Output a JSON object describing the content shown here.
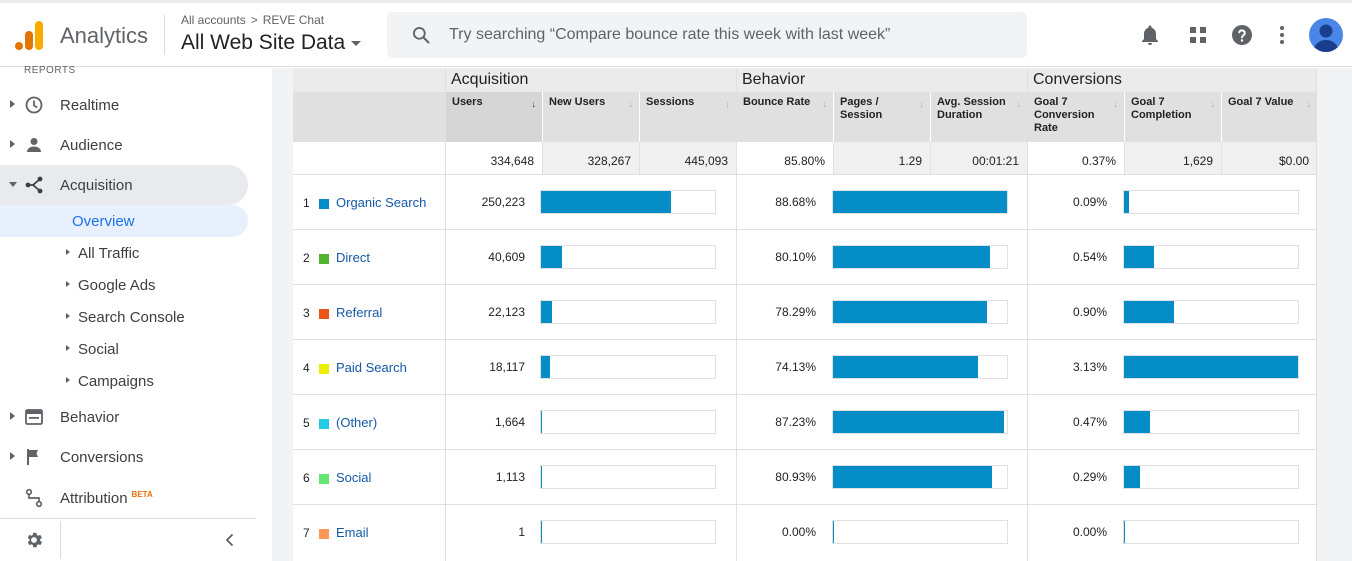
{
  "header": {
    "brand": "Analytics",
    "breadcrumb_root": "All accounts",
    "breadcrumb_sep": ">",
    "breadcrumb_account": "REVE Chat",
    "view_name": "All Web Site Data",
    "search_placeholder": "Try searching “Compare bounce rate this week with last week”"
  },
  "sidebar": {
    "reports_label": "REPORTS",
    "realtime": "Realtime",
    "audience": "Audience",
    "acquisition": "Acquisition",
    "overview": "Overview",
    "all_traffic": "All Traffic",
    "google_ads": "Google Ads",
    "search_console": "Search Console",
    "social": "Social",
    "campaigns": "Campaigns",
    "behavior": "Behavior",
    "conversions": "Conversions",
    "attribution": "Attribution",
    "beta": "BETA"
  },
  "table": {
    "groups": {
      "acquisition": "Acquisition",
      "behavior": "Behavior",
      "conversions": "Conversions"
    },
    "columns": {
      "users": "Users",
      "new_users": "New Users",
      "sessions": "Sessions",
      "bounce_rate": "Bounce Rate",
      "pages_session": "Pages / Session",
      "avg_duration": "Avg. Session Duration",
      "conv_rate": "Goal 7 Conversion Rate",
      "completion": "Goal 7 Completion",
      "goal_value": "Goal 7 Value"
    },
    "totals": {
      "users": "334,648",
      "new_users": "328,267",
      "sessions": "445,093",
      "bounce_rate": "85.80%",
      "pages_session": "1.29",
      "avg_duration": "00:01:21",
      "conv_rate": "0.37%",
      "completion": "1,629",
      "goal_value": "$0.00"
    },
    "rows": [
      {
        "n": "1",
        "channel": "Organic Search",
        "color": "#058dc7",
        "users": "250,223",
        "users_pct": 0.748,
        "bounce": "88.68%",
        "bounce_pct": 1.0,
        "conv": "0.09%",
        "conv_pct": 0.029
      },
      {
        "n": "2",
        "channel": "Direct",
        "color": "#50b432",
        "users": "40,609",
        "users_pct": 0.121,
        "bounce": "80.10%",
        "bounce_pct": 0.903,
        "conv": "0.54%",
        "conv_pct": 0.173
      },
      {
        "n": "3",
        "channel": "Referral",
        "color": "#ed561b",
        "users": "22,123",
        "users_pct": 0.066,
        "bounce": "78.29%",
        "bounce_pct": 0.883,
        "conv": "0.90%",
        "conv_pct": 0.288
      },
      {
        "n": "4",
        "channel": "Paid Search",
        "color": "#edef00",
        "users": "18,117",
        "users_pct": 0.054,
        "bounce": "74.13%",
        "bounce_pct": 0.836,
        "conv": "3.13%",
        "conv_pct": 1.0
      },
      {
        "n": "5",
        "channel": "(Other)",
        "color": "#24cbe5",
        "users": "1,664",
        "users_pct": 0.005,
        "bounce": "87.23%",
        "bounce_pct": 0.984,
        "conv": "0.47%",
        "conv_pct": 0.15
      },
      {
        "n": "6",
        "channel": "Social",
        "color": "#64e572",
        "users": "1,113",
        "users_pct": 0.003,
        "bounce": "80.93%",
        "bounce_pct": 0.913,
        "conv": "0.29%",
        "conv_pct": 0.093
      },
      {
        "n": "7",
        "channel": "Email",
        "color": "#ff9655",
        "users": "1",
        "users_pct": 0.0,
        "bounce": "0.00%",
        "bounce_pct": 0.0,
        "conv": "0.00%",
        "conv_pct": 0.0
      }
    ]
  }
}
